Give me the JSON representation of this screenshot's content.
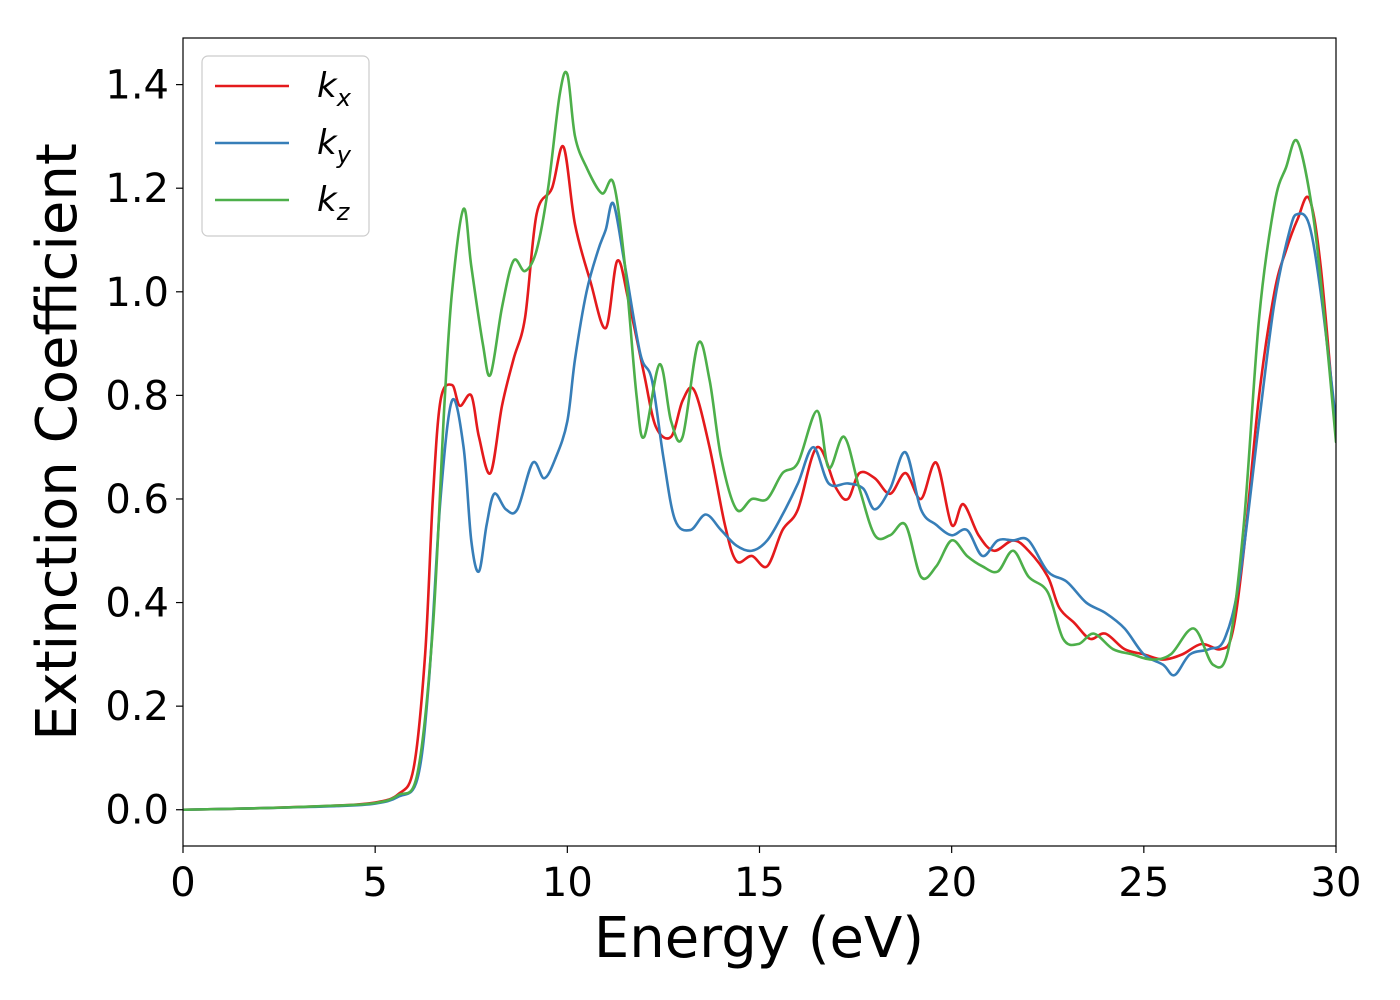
{
  "chart_data": {
    "type": "line",
    "title": "",
    "xlabel": "Energy (eV)",
    "ylabel": "Extinction Coefficient",
    "xlim": [
      0,
      30
    ],
    "ylim": [
      -0.07,
      1.49
    ],
    "xticks": [
      0,
      5,
      10,
      15,
      20,
      25,
      30
    ],
    "xtick_labels": [
      "0",
      "5",
      "10",
      "15",
      "20",
      "25",
      "30"
    ],
    "yticks": [
      0.0,
      0.2,
      0.4,
      0.6,
      0.8,
      1.0,
      1.2,
      1.4
    ],
    "ytick_labels": [
      "0.0",
      "0.2",
      "0.4",
      "0.6",
      "0.8",
      "1.0",
      "1.2",
      "1.4"
    ],
    "grid": false,
    "legend_position": "top-left",
    "series": [
      {
        "name": "kx",
        "base": "k",
        "sub": "x",
        "color": "#e41a1c",
        "points": [
          [
            0,
            0
          ],
          [
            2,
            0.003
          ],
          [
            4,
            0.008
          ],
          [
            5,
            0.014
          ],
          [
            5.6,
            0.03
          ],
          [
            6,
            0.08
          ],
          [
            6.3,
            0.3
          ],
          [
            6.5,
            0.6
          ],
          [
            6.7,
            0.79
          ],
          [
            7,
            0.82
          ],
          [
            7.2,
            0.78
          ],
          [
            7.5,
            0.8
          ],
          [
            7.7,
            0.72
          ],
          [
            8,
            0.65
          ],
          [
            8.3,
            0.78
          ],
          [
            8.6,
            0.87
          ],
          [
            8.9,
            0.95
          ],
          [
            9.2,
            1.15
          ],
          [
            9.6,
            1.2
          ],
          [
            9.9,
            1.28
          ],
          [
            10.2,
            1.13
          ],
          [
            10.6,
            1.02
          ],
          [
            11,
            0.93
          ],
          [
            11.3,
            1.06
          ],
          [
            11.6,
            0.98
          ],
          [
            12,
            0.84
          ],
          [
            12.3,
            0.74
          ],
          [
            12.7,
            0.72
          ],
          [
            13,
            0.79
          ],
          [
            13.3,
            0.81
          ],
          [
            13.7,
            0.7
          ],
          [
            14.1,
            0.55
          ],
          [
            14.4,
            0.48
          ],
          [
            14.8,
            0.49
          ],
          [
            15.2,
            0.47
          ],
          [
            15.6,
            0.54
          ],
          [
            16,
            0.58
          ],
          [
            16.5,
            0.7
          ],
          [
            17,
            0.62
          ],
          [
            17.3,
            0.6
          ],
          [
            17.6,
            0.65
          ],
          [
            18,
            0.64
          ],
          [
            18.4,
            0.61
          ],
          [
            18.8,
            0.65
          ],
          [
            19.2,
            0.6
          ],
          [
            19.6,
            0.67
          ],
          [
            20,
            0.55
          ],
          [
            20.3,
            0.59
          ],
          [
            20.7,
            0.53
          ],
          [
            21.1,
            0.5
          ],
          [
            21.6,
            0.52
          ],
          [
            22,
            0.5
          ],
          [
            22.5,
            0.45
          ],
          [
            22.8,
            0.39
          ],
          [
            23.2,
            0.36
          ],
          [
            23.6,
            0.33
          ],
          [
            24,
            0.34
          ],
          [
            24.5,
            0.31
          ],
          [
            25,
            0.3
          ],
          [
            25.5,
            0.29
          ],
          [
            26,
            0.3
          ],
          [
            26.5,
            0.32
          ],
          [
            27,
            0.31
          ],
          [
            27.3,
            0.34
          ],
          [
            27.6,
            0.5
          ],
          [
            28,
            0.8
          ],
          [
            28.4,
            1.0
          ],
          [
            28.7,
            1.08
          ],
          [
            29,
            1.14
          ],
          [
            29.3,
            1.18
          ],
          [
            29.6,
            1.05
          ],
          [
            30,
            0.72
          ]
        ]
      },
      {
        "name": "ky",
        "base": "k",
        "sub": "y",
        "color": "#377eb8",
        "points": [
          [
            0,
            0
          ],
          [
            2,
            0.003
          ],
          [
            4,
            0.007
          ],
          [
            5,
            0.012
          ],
          [
            5.6,
            0.025
          ],
          [
            6.1,
            0.06
          ],
          [
            6.4,
            0.25
          ],
          [
            6.7,
            0.6
          ],
          [
            7,
            0.79
          ],
          [
            7.3,
            0.7
          ],
          [
            7.5,
            0.52
          ],
          [
            7.7,
            0.46
          ],
          [
            7.9,
            0.55
          ],
          [
            8.1,
            0.61
          ],
          [
            8.4,
            0.58
          ],
          [
            8.7,
            0.58
          ],
          [
            9.1,
            0.67
          ],
          [
            9.4,
            0.64
          ],
          [
            9.7,
            0.68
          ],
          [
            10,
            0.75
          ],
          [
            10.2,
            0.87
          ],
          [
            10.5,
            1.0
          ],
          [
            10.8,
            1.08
          ],
          [
            11,
            1.12
          ],
          [
            11.2,
            1.17
          ],
          [
            11.5,
            1.05
          ],
          [
            11.9,
            0.88
          ],
          [
            12.2,
            0.83
          ],
          [
            12.5,
            0.68
          ],
          [
            12.8,
            0.56
          ],
          [
            13.2,
            0.54
          ],
          [
            13.6,
            0.57
          ],
          [
            14,
            0.54
          ],
          [
            14.4,
            0.51
          ],
          [
            14.8,
            0.5
          ],
          [
            15.2,
            0.52
          ],
          [
            15.6,
            0.57
          ],
          [
            16,
            0.63
          ],
          [
            16.4,
            0.7
          ],
          [
            16.8,
            0.63
          ],
          [
            17.3,
            0.63
          ],
          [
            17.7,
            0.62
          ],
          [
            18,
            0.58
          ],
          [
            18.4,
            0.62
          ],
          [
            18.8,
            0.69
          ],
          [
            19.2,
            0.58
          ],
          [
            19.6,
            0.55
          ],
          [
            20,
            0.53
          ],
          [
            20.4,
            0.54
          ],
          [
            20.8,
            0.49
          ],
          [
            21.2,
            0.52
          ],
          [
            21.6,
            0.52
          ],
          [
            22,
            0.52
          ],
          [
            22.5,
            0.46
          ],
          [
            23,
            0.44
          ],
          [
            23.5,
            0.4
          ],
          [
            24,
            0.38
          ],
          [
            24.5,
            0.35
          ],
          [
            25,
            0.3
          ],
          [
            25.5,
            0.28
          ],
          [
            25.8,
            0.26
          ],
          [
            26.2,
            0.3
          ],
          [
            26.7,
            0.31
          ],
          [
            27.1,
            0.33
          ],
          [
            27.5,
            0.45
          ],
          [
            28,
            0.75
          ],
          [
            28.4,
            0.98
          ],
          [
            28.8,
            1.12
          ],
          [
            29,
            1.15
          ],
          [
            29.3,
            1.13
          ],
          [
            29.6,
            1.0
          ],
          [
            30,
            0.75
          ]
        ]
      },
      {
        "name": "kz",
        "base": "k",
        "sub": "z",
        "color": "#4daf4a",
        "points": [
          [
            0,
            0
          ],
          [
            2,
            0.003
          ],
          [
            4,
            0.008
          ],
          [
            5,
            0.013
          ],
          [
            5.6,
            0.028
          ],
          [
            6.1,
            0.07
          ],
          [
            6.5,
            0.35
          ],
          [
            6.8,
            0.78
          ],
          [
            7,
            1.0
          ],
          [
            7.3,
            1.16
          ],
          [
            7.5,
            1.05
          ],
          [
            7.8,
            0.9
          ],
          [
            8,
            0.84
          ],
          [
            8.3,
            0.97
          ],
          [
            8.6,
            1.06
          ],
          [
            8.9,
            1.04
          ],
          [
            9.2,
            1.08
          ],
          [
            9.5,
            1.2
          ],
          [
            9.8,
            1.38
          ],
          [
            10,
            1.42
          ],
          [
            10.2,
            1.3
          ],
          [
            10.5,
            1.24
          ],
          [
            10.9,
            1.19
          ],
          [
            11.2,
            1.21
          ],
          [
            11.5,
            1.05
          ],
          [
            11.8,
            0.8
          ],
          [
            12,
            0.72
          ],
          [
            12.4,
            0.86
          ],
          [
            12.7,
            0.75
          ],
          [
            13,
            0.72
          ],
          [
            13.4,
            0.9
          ],
          [
            13.7,
            0.83
          ],
          [
            14,
            0.68
          ],
          [
            14.4,
            0.58
          ],
          [
            14.8,
            0.6
          ],
          [
            15.2,
            0.6
          ],
          [
            15.6,
            0.65
          ],
          [
            16,
            0.67
          ],
          [
            16.5,
            0.77
          ],
          [
            16.8,
            0.66
          ],
          [
            17.2,
            0.72
          ],
          [
            17.6,
            0.62
          ],
          [
            18,
            0.53
          ],
          [
            18.4,
            0.53
          ],
          [
            18.8,
            0.55
          ],
          [
            19.2,
            0.45
          ],
          [
            19.6,
            0.47
          ],
          [
            20,
            0.52
          ],
          [
            20.4,
            0.49
          ],
          [
            20.8,
            0.47
          ],
          [
            21.2,
            0.46
          ],
          [
            21.6,
            0.5
          ],
          [
            22,
            0.45
          ],
          [
            22.5,
            0.42
          ],
          [
            22.9,
            0.33
          ],
          [
            23.3,
            0.32
          ],
          [
            23.7,
            0.34
          ],
          [
            24.2,
            0.31
          ],
          [
            24.7,
            0.3
          ],
          [
            25.2,
            0.29
          ],
          [
            25.7,
            0.3
          ],
          [
            26.3,
            0.35
          ],
          [
            26.8,
            0.28
          ],
          [
            27.2,
            0.31
          ],
          [
            27.6,
            0.55
          ],
          [
            28,
            0.95
          ],
          [
            28.4,
            1.17
          ],
          [
            28.7,
            1.24
          ],
          [
            29,
            1.29
          ],
          [
            29.4,
            1.15
          ],
          [
            29.7,
            0.95
          ],
          [
            30,
            0.71
          ]
        ]
      }
    ]
  }
}
